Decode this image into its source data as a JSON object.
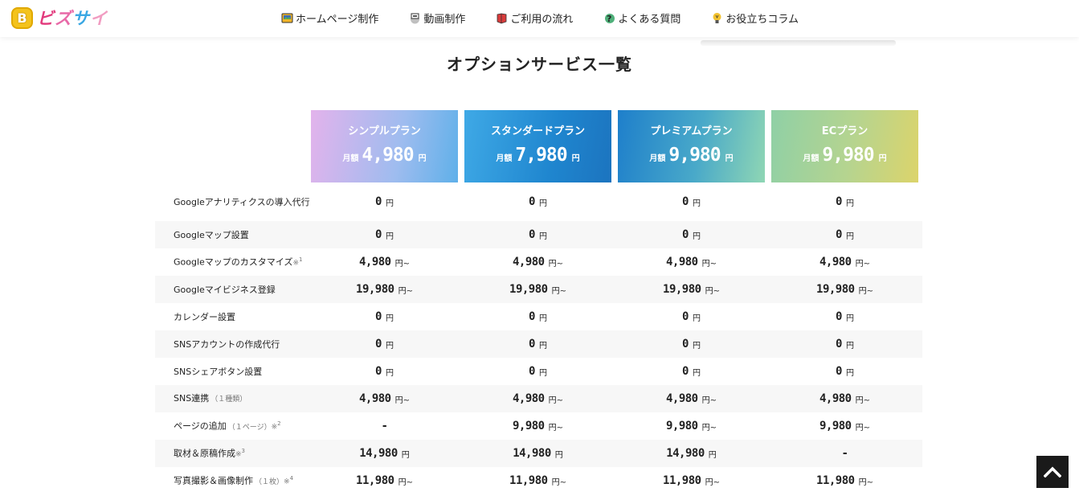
{
  "header": {
    "logo_badge": "B",
    "logo_chars": [
      "ビ",
      "ズ",
      "サ",
      "イ"
    ],
    "nav": [
      {
        "label": "ホームページ制作",
        "icon": "homepage-icon"
      },
      {
        "label": "動画制作",
        "icon": "video-icon"
      },
      {
        "label": "ご利用の流れ",
        "icon": "flow-icon"
      },
      {
        "label": "よくある質問",
        "icon": "faq-icon"
      },
      {
        "label": "お役立ちコラム",
        "icon": "column-icon"
      }
    ]
  },
  "section_title": "オプションサービス一覧",
  "plans": [
    {
      "name": "シンプルプラン",
      "price_label": "月額",
      "price": "4,980",
      "unit": "円"
    },
    {
      "name": "スタンダードプラン",
      "price_label": "月額",
      "price": "7,980",
      "unit": "円"
    },
    {
      "name": "プレミアムプラン",
      "price_label": "月額",
      "price": "9,980",
      "unit": "円"
    },
    {
      "name": "ECプラン",
      "price_label": "月額",
      "price": "9,980",
      "unit": "円"
    }
  ],
  "rows": [
    {
      "label": "Googleアナリティクスの導入代行",
      "sub": "",
      "note": "",
      "sup": "",
      "cells": [
        {
          "v": "0",
          "u": "円"
        },
        {
          "v": "0",
          "u": "円"
        },
        {
          "v": "0",
          "u": "円"
        },
        {
          "v": "0",
          "u": "円"
        }
      ]
    },
    {
      "label": "Googleマップ設置",
      "sub": "",
      "note": "",
      "sup": "",
      "cells": [
        {
          "v": "0",
          "u": "円"
        },
        {
          "v": "0",
          "u": "円"
        },
        {
          "v": "0",
          "u": "円"
        },
        {
          "v": "0",
          "u": "円"
        }
      ]
    },
    {
      "label": "Googleマップのカスタマイズ",
      "sub": "",
      "note": "※",
      "sup": "1",
      "cells": [
        {
          "v": "4,980",
          "u": "円~"
        },
        {
          "v": "4,980",
          "u": "円~"
        },
        {
          "v": "4,980",
          "u": "円~"
        },
        {
          "v": "4,980",
          "u": "円~"
        }
      ]
    },
    {
      "label": "Googleマイビジネス登録",
      "sub": "",
      "note": "",
      "sup": "",
      "cells": [
        {
          "v": "19,980",
          "u": "円~"
        },
        {
          "v": "19,980",
          "u": "円~"
        },
        {
          "v": "19,980",
          "u": "円~"
        },
        {
          "v": "19,980",
          "u": "円~"
        }
      ]
    },
    {
      "label": "カレンダー設置",
      "sub": "",
      "note": "",
      "sup": "",
      "cells": [
        {
          "v": "0",
          "u": "円"
        },
        {
          "v": "0",
          "u": "円"
        },
        {
          "v": "0",
          "u": "円"
        },
        {
          "v": "0",
          "u": "円"
        }
      ]
    },
    {
      "label": "SNSアカウントの作成代行",
      "sub": "",
      "note": "",
      "sup": "",
      "cells": [
        {
          "v": "0",
          "u": "円"
        },
        {
          "v": "0",
          "u": "円"
        },
        {
          "v": "0",
          "u": "円"
        },
        {
          "v": "0",
          "u": "円"
        }
      ]
    },
    {
      "label": "SNSシェアボタン設置",
      "sub": "",
      "note": "",
      "sup": "",
      "cells": [
        {
          "v": "0",
          "u": "円"
        },
        {
          "v": "0",
          "u": "円"
        },
        {
          "v": "0",
          "u": "円"
        },
        {
          "v": "0",
          "u": "円"
        }
      ]
    },
    {
      "label": "SNS連携",
      "sub": "（１種類）",
      "note": "",
      "sup": "",
      "cells": [
        {
          "v": "4,980",
          "u": "円~"
        },
        {
          "v": "4,980",
          "u": "円~"
        },
        {
          "v": "4,980",
          "u": "円~"
        },
        {
          "v": "4,980",
          "u": "円~"
        }
      ]
    },
    {
      "label": "ページの追加",
      "sub": "（１ページ）",
      "note": "※",
      "sup": "2",
      "cells": [
        {
          "v": "-",
          "u": ""
        },
        {
          "v": "9,980",
          "u": "円~"
        },
        {
          "v": "9,980",
          "u": "円~"
        },
        {
          "v": "9,980",
          "u": "円~"
        }
      ]
    },
    {
      "label": "取材＆原稿作成",
      "sub": "",
      "note": "※",
      "sup": "3",
      "cells": [
        {
          "v": "14,980",
          "u": "円"
        },
        {
          "v": "14,980",
          "u": "円"
        },
        {
          "v": "14,980",
          "u": "円"
        },
        {
          "v": "-",
          "u": ""
        }
      ]
    },
    {
      "label": "写真撮影＆画像制作",
      "sub": "（１枚）",
      "note": "※",
      "sup": "4",
      "cells": [
        {
          "v": "11,980",
          "u": "円~"
        },
        {
          "v": "11,980",
          "u": "円~"
        },
        {
          "v": "11,980",
          "u": "円~"
        },
        {
          "v": "11,980",
          "u": "円~"
        }
      ]
    }
  ],
  "back_to_top_icon": "chevron-up-icon"
}
